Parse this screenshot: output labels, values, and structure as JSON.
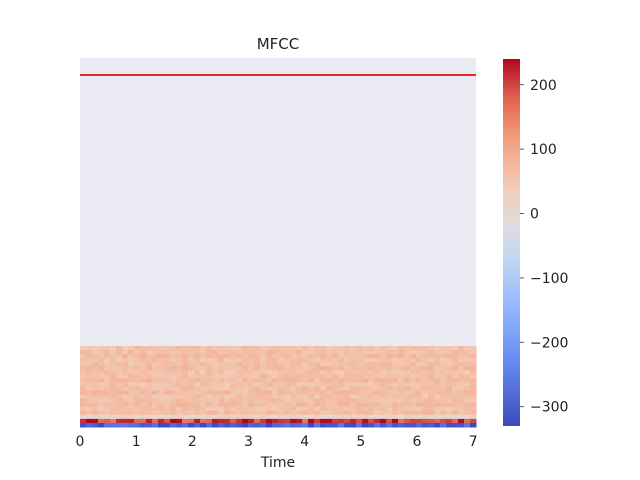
{
  "chart_data": {
    "type": "heatmap",
    "title": "MFCC",
    "xlabel": "Time",
    "ylabel": "",
    "x_ticks": [
      0,
      1,
      2,
      3,
      4,
      5,
      6,
      7
    ],
    "x_tick_labels": [
      "0",
      "1",
      "2",
      "3",
      "4",
      "5",
      "6",
      "7"
    ],
    "xlim": [
      0,
      7.05
    ],
    "colorbar": {
      "cmap": "coolwarm",
      "range": [
        -330,
        240
      ],
      "ticks": [
        200,
        100,
        0,
        -100,
        -200,
        -300
      ],
      "tick_labels": [
        "200",
        "100",
        "0",
        "−100",
        "−200",
        "−300"
      ]
    },
    "background_color": "#eaeaf2",
    "overlay_line": {
      "color": "#e8261c"
    },
    "data_band": {
      "approx_value_range": [
        -330,
        240
      ]
    }
  }
}
